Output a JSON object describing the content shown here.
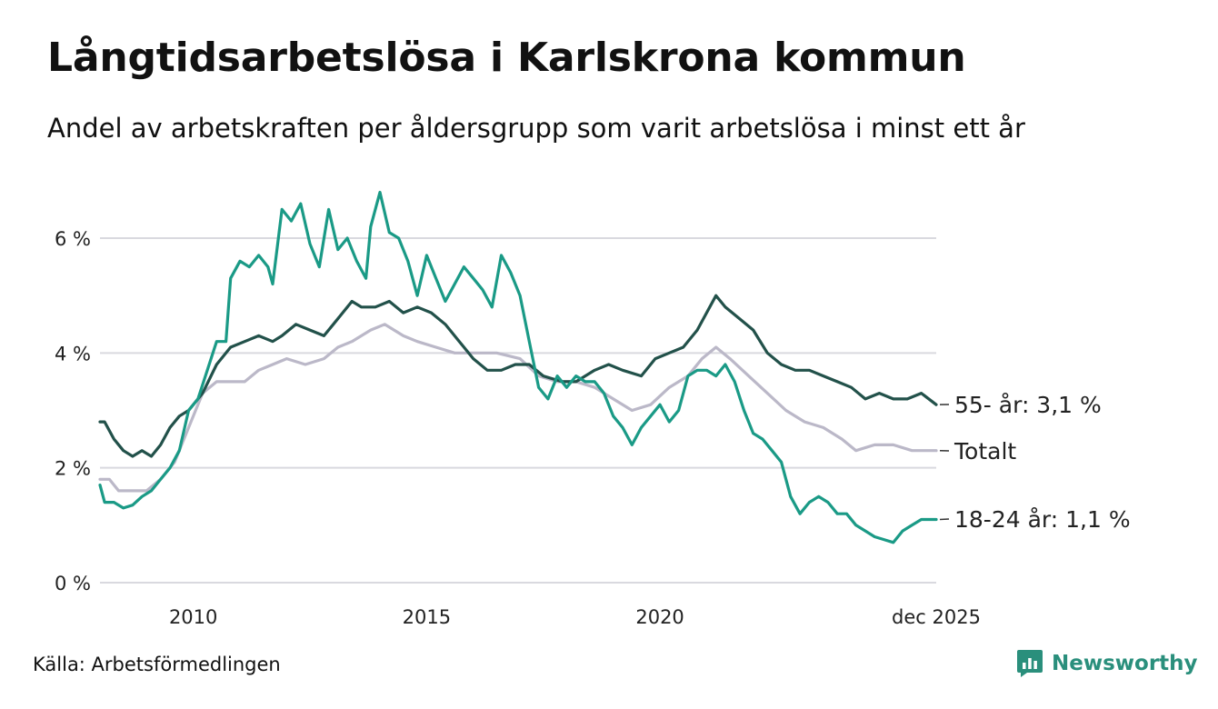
{
  "title": "Långtidsarbetslösa i Karlskrona kommun",
  "subtitle": "Andel av arbetskraften per åldersgrupp som varit arbetslösa i minst ett år",
  "source": "Källa: Arbetsförmedlingen",
  "brand": {
    "name": "Newsworthy",
    "icon": "newsworthy-logo-icon"
  },
  "colors": {
    "series_55_plus": "#22514a",
    "series_total": "#bbb8c8",
    "series_18_24": "#1a9a86",
    "grid": "#d9d9df",
    "brand": "#2a8f7c"
  },
  "chart_data": {
    "type": "line",
    "title": "Långtidsarbetslösa i Karlskrona kommun",
    "xlabel": "",
    "ylabel": "",
    "x_unit": "year (decimal)",
    "xlim": [
      2008,
      2025.92
    ],
    "ylim": [
      0,
      7
    ],
    "grid": true,
    "x_ticks": [
      {
        "value": 2010,
        "label": "2010"
      },
      {
        "value": 2015,
        "label": "2015"
      },
      {
        "value": 2020,
        "label": "2020"
      },
      {
        "value": 2025.92,
        "label": "dec 2025"
      }
    ],
    "y_ticks": [
      {
        "value": 0,
        "label": "0 %"
      },
      {
        "value": 2,
        "label": "2 %"
      },
      {
        "value": 4,
        "label": "4 %"
      },
      {
        "value": 6,
        "label": "6 %"
      }
    ],
    "series": [
      {
        "name": "Totalt",
        "label": "Totalt",
        "color": "#bbb8c8",
        "points": [
          [
            2008.0,
            1.8
          ],
          [
            2008.2,
            1.8
          ],
          [
            2008.4,
            1.6
          ],
          [
            2008.7,
            1.6
          ],
          [
            2009.0,
            1.6
          ],
          [
            2009.3,
            1.8
          ],
          [
            2009.6,
            2.1
          ],
          [
            2009.9,
            2.7
          ],
          [
            2010.2,
            3.3
          ],
          [
            2010.5,
            3.5
          ],
          [
            2010.8,
            3.5
          ],
          [
            2011.1,
            3.5
          ],
          [
            2011.4,
            3.7
          ],
          [
            2011.7,
            3.8
          ],
          [
            2012.0,
            3.9
          ],
          [
            2012.4,
            3.8
          ],
          [
            2012.8,
            3.9
          ],
          [
            2013.1,
            4.1
          ],
          [
            2013.4,
            4.2
          ],
          [
            2013.8,
            4.4
          ],
          [
            2014.1,
            4.5
          ],
          [
            2014.5,
            4.3
          ],
          [
            2014.8,
            4.2
          ],
          [
            2015.2,
            4.1
          ],
          [
            2015.6,
            4.0
          ],
          [
            2016.0,
            4.0
          ],
          [
            2016.5,
            4.0
          ],
          [
            2017.0,
            3.9
          ],
          [
            2017.4,
            3.6
          ],
          [
            2017.8,
            3.5
          ],
          [
            2018.2,
            3.5
          ],
          [
            2018.6,
            3.4
          ],
          [
            2019.0,
            3.2
          ],
          [
            2019.4,
            3.0
          ],
          [
            2019.8,
            3.1
          ],
          [
            2020.2,
            3.4
          ],
          [
            2020.6,
            3.6
          ],
          [
            2020.9,
            3.9
          ],
          [
            2021.2,
            4.1
          ],
          [
            2021.5,
            3.9
          ],
          [
            2021.9,
            3.6
          ],
          [
            2022.3,
            3.3
          ],
          [
            2022.7,
            3.0
          ],
          [
            2023.1,
            2.8
          ],
          [
            2023.5,
            2.7
          ],
          [
            2023.9,
            2.5
          ],
          [
            2024.2,
            2.3
          ],
          [
            2024.6,
            2.4
          ],
          [
            2025.0,
            2.4
          ],
          [
            2025.4,
            2.3
          ],
          [
            2025.92,
            2.3
          ]
        ]
      },
      {
        "name": "55- år",
        "label": "55- år: 3,1 %",
        "color": "#22514a",
        "points": [
          [
            2008.0,
            2.8
          ],
          [
            2008.1,
            2.8
          ],
          [
            2008.3,
            2.5
          ],
          [
            2008.5,
            2.3
          ],
          [
            2008.7,
            2.2
          ],
          [
            2008.9,
            2.3
          ],
          [
            2009.1,
            2.2
          ],
          [
            2009.3,
            2.4
          ],
          [
            2009.5,
            2.7
          ],
          [
            2009.7,
            2.9
          ],
          [
            2009.9,
            3.0
          ],
          [
            2010.2,
            3.3
          ],
          [
            2010.5,
            3.8
          ],
          [
            2010.8,
            4.1
          ],
          [
            2011.1,
            4.2
          ],
          [
            2011.4,
            4.3
          ],
          [
            2011.7,
            4.2
          ],
          [
            2011.9,
            4.3
          ],
          [
            2012.2,
            4.5
          ],
          [
            2012.5,
            4.4
          ],
          [
            2012.8,
            4.3
          ],
          [
            2013.0,
            4.5
          ],
          [
            2013.2,
            4.7
          ],
          [
            2013.4,
            4.9
          ],
          [
            2013.6,
            4.8
          ],
          [
            2013.9,
            4.8
          ],
          [
            2014.2,
            4.9
          ],
          [
            2014.5,
            4.7
          ],
          [
            2014.8,
            4.8
          ],
          [
            2015.1,
            4.7
          ],
          [
            2015.4,
            4.5
          ],
          [
            2015.7,
            4.2
          ],
          [
            2016.0,
            3.9
          ],
          [
            2016.3,
            3.7
          ],
          [
            2016.6,
            3.7
          ],
          [
            2016.9,
            3.8
          ],
          [
            2017.2,
            3.8
          ],
          [
            2017.5,
            3.6
          ],
          [
            2017.9,
            3.5
          ],
          [
            2018.2,
            3.5
          ],
          [
            2018.6,
            3.7
          ],
          [
            2018.9,
            3.8
          ],
          [
            2019.2,
            3.7
          ],
          [
            2019.6,
            3.6
          ],
          [
            2019.9,
            3.9
          ],
          [
            2020.2,
            4.0
          ],
          [
            2020.5,
            4.1
          ],
          [
            2020.8,
            4.4
          ],
          [
            2021.0,
            4.7
          ],
          [
            2021.2,
            5.0
          ],
          [
            2021.4,
            4.8
          ],
          [
            2021.7,
            4.6
          ],
          [
            2022.0,
            4.4
          ],
          [
            2022.3,
            4.0
          ],
          [
            2022.6,
            3.8
          ],
          [
            2022.9,
            3.7
          ],
          [
            2023.2,
            3.7
          ],
          [
            2023.5,
            3.6
          ],
          [
            2023.8,
            3.5
          ],
          [
            2024.1,
            3.4
          ],
          [
            2024.4,
            3.2
          ],
          [
            2024.7,
            3.3
          ],
          [
            2025.0,
            3.2
          ],
          [
            2025.3,
            3.2
          ],
          [
            2025.6,
            3.3
          ],
          [
            2025.92,
            3.1
          ]
        ]
      },
      {
        "name": "18-24 år",
        "label": "18-24 år: 1,1 %",
        "color": "#1a9a86",
        "points": [
          [
            2008.0,
            1.7
          ],
          [
            2008.1,
            1.4
          ],
          [
            2008.3,
            1.4
          ],
          [
            2008.5,
            1.3
          ],
          [
            2008.7,
            1.35
          ],
          [
            2008.9,
            1.5
          ],
          [
            2009.1,
            1.6
          ],
          [
            2009.3,
            1.8
          ],
          [
            2009.5,
            2.0
          ],
          [
            2009.7,
            2.3
          ],
          [
            2009.9,
            3.0
          ],
          [
            2010.1,
            3.2
          ],
          [
            2010.3,
            3.7
          ],
          [
            2010.5,
            4.2
          ],
          [
            2010.7,
            4.2
          ],
          [
            2010.8,
            5.3
          ],
          [
            2011.0,
            5.6
          ],
          [
            2011.2,
            5.5
          ],
          [
            2011.4,
            5.7
          ],
          [
            2011.6,
            5.5
          ],
          [
            2011.7,
            5.2
          ],
          [
            2011.9,
            6.5
          ],
          [
            2012.1,
            6.3
          ],
          [
            2012.3,
            6.6
          ],
          [
            2012.5,
            5.9
          ],
          [
            2012.7,
            5.5
          ],
          [
            2012.9,
            6.5
          ],
          [
            2013.1,
            5.8
          ],
          [
            2013.3,
            6.0
          ],
          [
            2013.5,
            5.6
          ],
          [
            2013.7,
            5.3
          ],
          [
            2013.8,
            6.2
          ],
          [
            2014.0,
            6.8
          ],
          [
            2014.2,
            6.1
          ],
          [
            2014.4,
            6.0
          ],
          [
            2014.6,
            5.6
          ],
          [
            2014.8,
            5.0
          ],
          [
            2015.0,
            5.7
          ],
          [
            2015.2,
            5.3
          ],
          [
            2015.4,
            4.9
          ],
          [
            2015.6,
            5.2
          ],
          [
            2015.8,
            5.5
          ],
          [
            2016.0,
            5.3
          ],
          [
            2016.2,
            5.1
          ],
          [
            2016.4,
            4.8
          ],
          [
            2016.6,
            5.7
          ],
          [
            2016.8,
            5.4
          ],
          [
            2017.0,
            5.0
          ],
          [
            2017.2,
            4.2
          ],
          [
            2017.4,
            3.4
          ],
          [
            2017.6,
            3.2
          ],
          [
            2017.8,
            3.6
          ],
          [
            2018.0,
            3.4
          ],
          [
            2018.2,
            3.6
          ],
          [
            2018.4,
            3.5
          ],
          [
            2018.6,
            3.5
          ],
          [
            2018.8,
            3.3
          ],
          [
            2019.0,
            2.9
          ],
          [
            2019.2,
            2.7
          ],
          [
            2019.4,
            2.4
          ],
          [
            2019.6,
            2.7
          ],
          [
            2019.8,
            2.9
          ],
          [
            2020.0,
            3.1
          ],
          [
            2020.2,
            2.8
          ],
          [
            2020.4,
            3.0
          ],
          [
            2020.6,
            3.6
          ],
          [
            2020.8,
            3.7
          ],
          [
            2021.0,
            3.7
          ],
          [
            2021.2,
            3.6
          ],
          [
            2021.4,
            3.8
          ],
          [
            2021.6,
            3.5
          ],
          [
            2021.8,
            3.0
          ],
          [
            2022.0,
            2.6
          ],
          [
            2022.2,
            2.5
          ],
          [
            2022.4,
            2.3
          ],
          [
            2022.6,
            2.1
          ],
          [
            2022.8,
            1.5
          ],
          [
            2023.0,
            1.2
          ],
          [
            2023.2,
            1.4
          ],
          [
            2023.4,
            1.5
          ],
          [
            2023.6,
            1.4
          ],
          [
            2023.8,
            1.2
          ],
          [
            2024.0,
            1.2
          ],
          [
            2024.2,
            1.0
          ],
          [
            2024.4,
            0.9
          ],
          [
            2024.6,
            0.8
          ],
          [
            2024.8,
            0.75
          ],
          [
            2025.0,
            0.7
          ],
          [
            2025.2,
            0.9
          ],
          [
            2025.4,
            1.0
          ],
          [
            2025.6,
            1.1
          ],
          [
            2025.92,
            1.1
          ]
        ]
      }
    ]
  }
}
